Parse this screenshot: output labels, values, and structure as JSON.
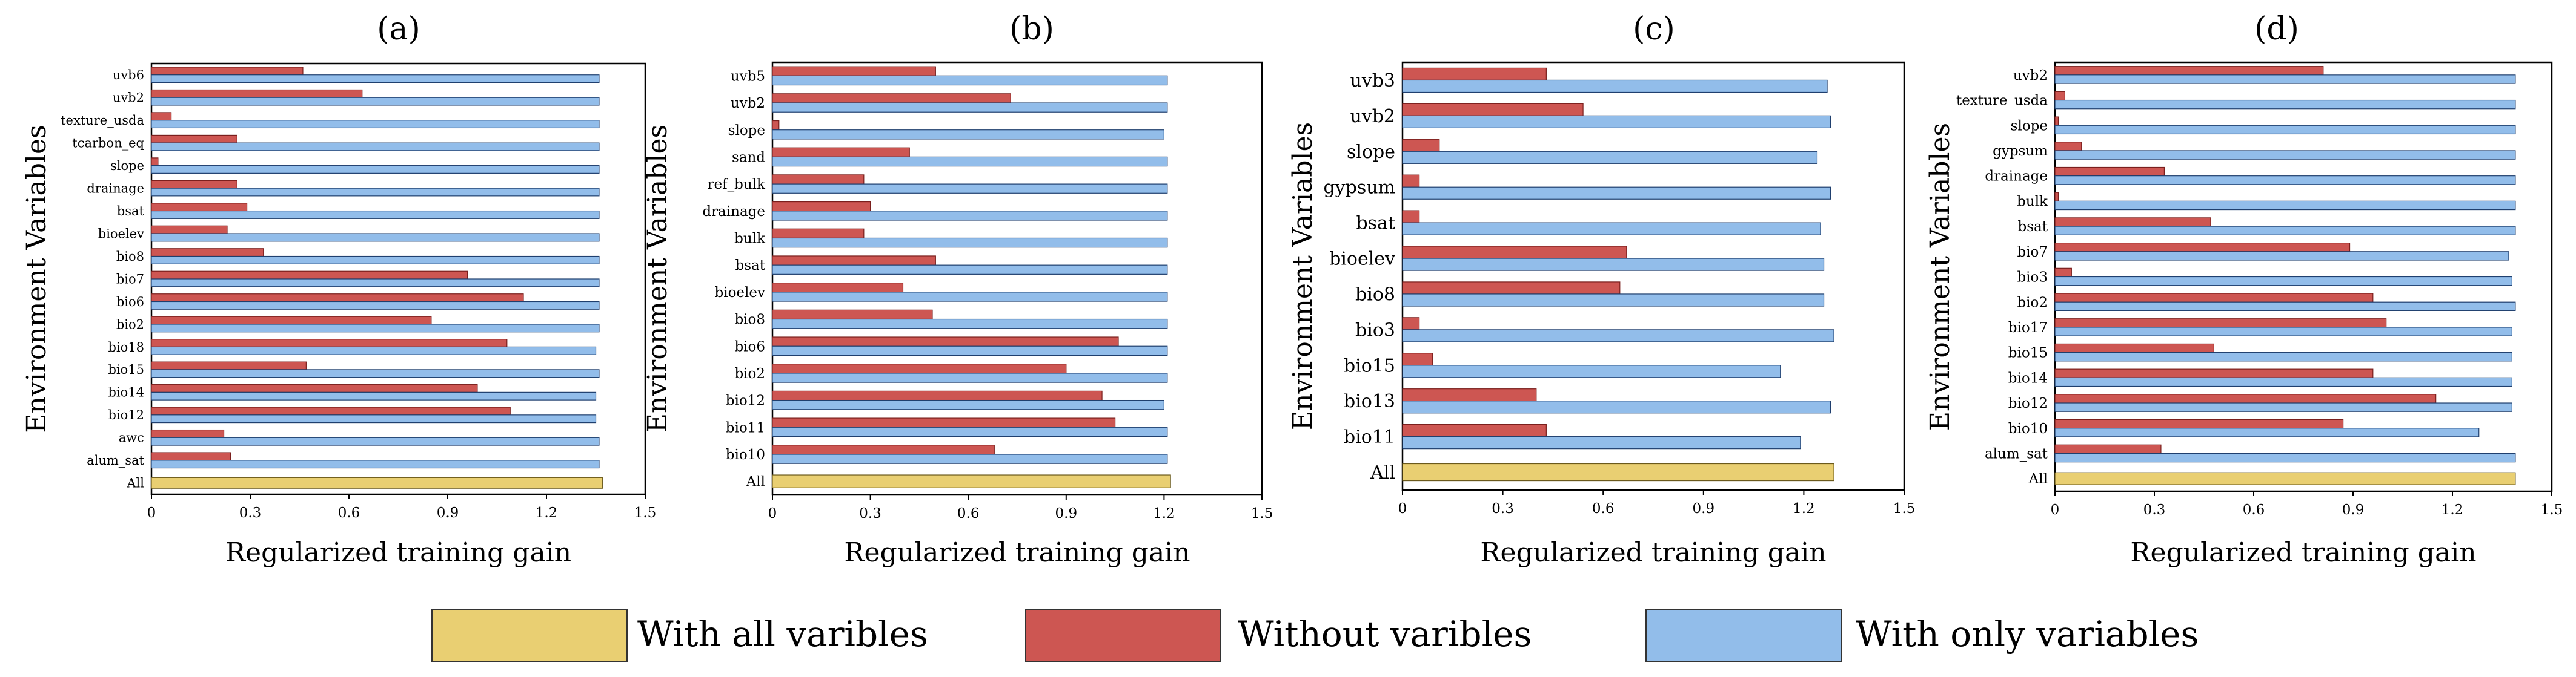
{
  "chart_data": [
    {
      "type": "bar",
      "orientation": "horizontal",
      "panel_label": "(a)",
      "xlabel": "Regularized training gain",
      "ylabel": "Environment Variables",
      "xlim": [
        0,
        1.5
      ],
      "xticks": [
        "0",
        "0.3",
        "0.6",
        "0.9",
        "1.2",
        "1.5"
      ],
      "categories": [
        "uvb6",
        "uvb2",
        "texture_usda",
        "tcarbon_eq",
        "slope",
        "drainage",
        "bsat",
        "bioelev",
        "bio8",
        "bio7",
        "bio6",
        "bio2",
        "bio18",
        "bio15",
        "bio14",
        "bio12",
        "awc",
        "alum_sat",
        "All"
      ],
      "series": [
        {
          "name": "Without varibles",
          "values": [
            0.46,
            0.64,
            0.06,
            0.26,
            0.02,
            0.26,
            0.29,
            0.23,
            0.34,
            0.96,
            1.13,
            0.85,
            1.08,
            0.47,
            0.99,
            1.09,
            0.22,
            0.24,
            null
          ]
        },
        {
          "name": "With only variables",
          "values": [
            1.36,
            1.36,
            1.36,
            1.36,
            1.36,
            1.36,
            1.36,
            1.36,
            1.36,
            1.36,
            1.36,
            1.36,
            1.35,
            1.36,
            1.35,
            1.35,
            1.36,
            1.36,
            null
          ]
        },
        {
          "name": "With all varibles",
          "values": [
            null,
            null,
            null,
            null,
            null,
            null,
            null,
            null,
            null,
            null,
            null,
            null,
            null,
            null,
            null,
            null,
            null,
            null,
            1.37
          ]
        }
      ]
    },
    {
      "type": "bar",
      "orientation": "horizontal",
      "panel_label": "(b)",
      "xlabel": "Regularized training gain",
      "ylabel": "Environment Variables",
      "xlim": [
        0,
        1.5
      ],
      "xticks": [
        "0",
        "0.3",
        "0.6",
        "0.9",
        "1.2",
        "1.5"
      ],
      "categories": [
        "uvb5",
        "uvb2",
        "slope",
        "sand",
        "ref_bulk",
        "drainage",
        "bulk",
        "bsat",
        "bioelev",
        "bio8",
        "bio6",
        "bio2",
        "bio12",
        "bio11",
        "bio10",
        "All"
      ],
      "series": [
        {
          "name": "Without varibles",
          "values": [
            0.5,
            0.73,
            0.02,
            0.42,
            0.28,
            0.3,
            0.28,
            0.5,
            0.4,
            0.49,
            1.06,
            0.9,
            1.01,
            1.05,
            0.68,
            null
          ]
        },
        {
          "name": "With only variables",
          "values": [
            1.21,
            1.21,
            1.2,
            1.21,
            1.21,
            1.21,
            1.21,
            1.21,
            1.21,
            1.21,
            1.21,
            1.21,
            1.2,
            1.21,
            1.21,
            null
          ]
        },
        {
          "name": "With all varibles",
          "values": [
            null,
            null,
            null,
            null,
            null,
            null,
            null,
            null,
            null,
            null,
            null,
            null,
            null,
            null,
            null,
            1.22
          ]
        }
      ]
    },
    {
      "type": "bar",
      "orientation": "horizontal",
      "panel_label": "(c)",
      "xlabel": "Regularized training gain",
      "ylabel": "Environment Variables",
      "xlim": [
        0,
        1.5
      ],
      "xticks": [
        "0",
        "0.3",
        "0.6",
        "0.9",
        "1.2",
        "1.5"
      ],
      "categories": [
        "uvb3",
        "uvb2",
        "slope",
        "gypsum",
        "bsat",
        "bioelev",
        "bio8",
        "bio3",
        "bio15",
        "bio13",
        "bio11",
        "All"
      ],
      "series": [
        {
          "name": "Without varibles",
          "values": [
            0.43,
            0.54,
            0.11,
            0.05,
            0.05,
            0.67,
            0.65,
            0.05,
            0.09,
            0.4,
            0.43,
            null
          ]
        },
        {
          "name": "With only variables",
          "values": [
            1.27,
            1.28,
            1.24,
            1.28,
            1.25,
            1.26,
            1.26,
            1.29,
            1.13,
            1.28,
            1.19,
            null
          ]
        },
        {
          "name": "With all varibles",
          "values": [
            null,
            null,
            null,
            null,
            null,
            null,
            null,
            null,
            null,
            null,
            null,
            1.29
          ]
        }
      ]
    },
    {
      "type": "bar",
      "orientation": "horizontal",
      "panel_label": "(d)",
      "xlabel": "Regularized training gain",
      "ylabel": "Environment Variables",
      "xlim": [
        0,
        1.5
      ],
      "xticks": [
        "0",
        "0.3",
        "0.6",
        "0.9",
        "1.2",
        "1.5"
      ],
      "categories": [
        "uvb2",
        "texture_usda",
        "slope",
        "gypsum",
        "drainage",
        "bulk",
        "bsat",
        "bio7",
        "bio3",
        "bio2",
        "bio17",
        "bio15",
        "bio14",
        "bio12",
        "bio10",
        "alum_sat",
        "All"
      ],
      "series": [
        {
          "name": "Without varibles",
          "values": [
            0.81,
            0.03,
            0.01,
            0.08,
            0.33,
            0.01,
            0.47,
            0.89,
            0.05,
            0.96,
            1.0,
            0.48,
            0.96,
            1.15,
            0.87,
            0.32,
            null
          ]
        },
        {
          "name": "With only variables",
          "values": [
            1.39,
            1.39,
            1.39,
            1.39,
            1.39,
            1.39,
            1.39,
            1.37,
            1.38,
            1.39,
            1.38,
            1.38,
            1.38,
            1.38,
            1.28,
            1.39,
            null
          ]
        },
        {
          "name": "With all varibles",
          "values": [
            null,
            null,
            null,
            null,
            null,
            null,
            null,
            null,
            null,
            null,
            null,
            null,
            null,
            null,
            null,
            null,
            1.39
          ]
        }
      ]
    }
  ],
  "legend": {
    "items": [
      {
        "label": "With all varibles",
        "color": "#e9cf72"
      },
      {
        "label": "Without varibles",
        "color": "#cd5652"
      },
      {
        "label": "With only variables",
        "color": "#92bdea"
      }
    ]
  },
  "colors": {
    "without": "#cd5652",
    "only": "#92bdea",
    "all": "#e9cf72"
  }
}
